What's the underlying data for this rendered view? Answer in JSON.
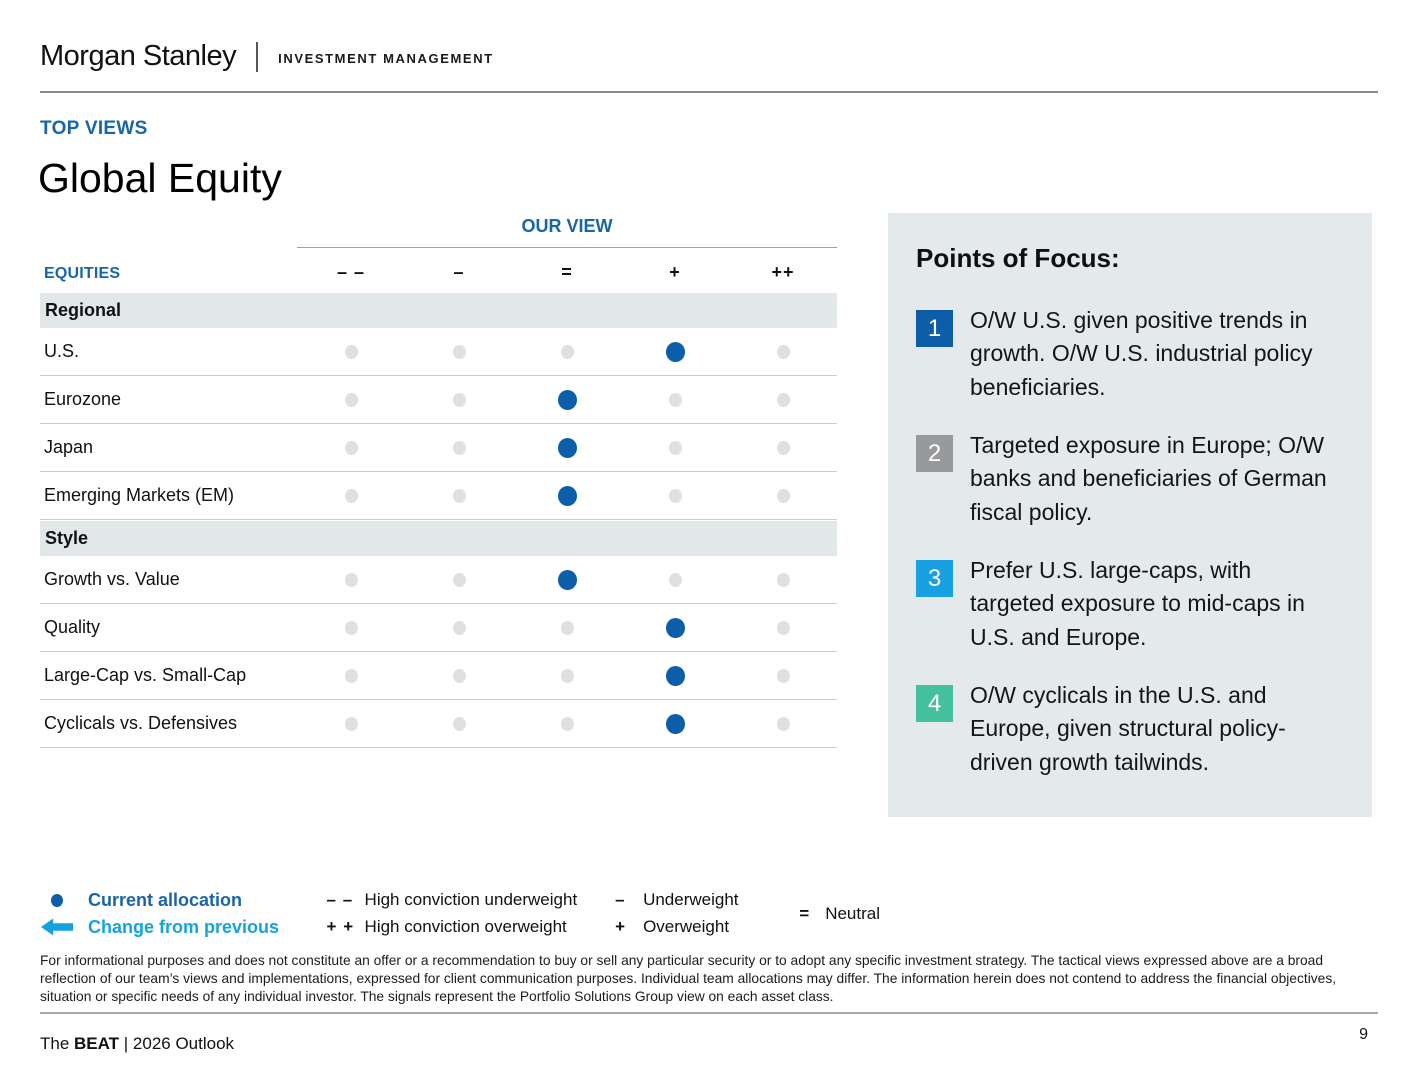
{
  "brand": {
    "logo_main": "Morgan Stanley",
    "logo_sub": "INVESTMENT MANAGEMENT"
  },
  "page": {
    "eyebrow": "TOP VIEWS",
    "title": "Global Equity",
    "page_number": "9",
    "footer_pre": "The ",
    "footer_bold": "BEAT",
    "footer_post": " | 2026 Outlook"
  },
  "table": {
    "group_header": "OUR VIEW",
    "row_header": "EQUITIES",
    "columns": [
      "– –",
      "–",
      "=",
      "+",
      "++"
    ],
    "sections": [
      {
        "title": "Regional",
        "rows": [
          {
            "label": "U.S.",
            "allocation": 3
          },
          {
            "label": "Eurozone",
            "allocation": 2
          },
          {
            "label": "Japan",
            "allocation": 2
          },
          {
            "label": "Emerging Markets (EM)",
            "allocation": 2
          }
        ]
      },
      {
        "title": "Style",
        "rows": [
          {
            "label": "Growth vs. Value",
            "allocation": 2
          },
          {
            "label": "Quality",
            "allocation": 3
          },
          {
            "label": "Large-Cap vs. Small-Cap",
            "allocation": 3
          },
          {
            "label": "Cyclicals vs. Defensives",
            "allocation": 3
          }
        ]
      }
    ]
  },
  "points_of_focus": {
    "title": "Points of Focus:",
    "items": [
      {
        "number": "1",
        "color": "#0d5ca7",
        "text": "O/W U.S. given positive trends in growth. O/W U.S. industrial policy beneficiaries."
      },
      {
        "number": "2",
        "color": "#98999b",
        "text": "Targeted exposure in Europe; O/W banks and beneficiaries of German fiscal policy."
      },
      {
        "number": "3",
        "color": "#18a0e2",
        "text": "Prefer U.S. large-caps, with targeted exposure to mid-caps in U.S. and Europe."
      },
      {
        "number": "4",
        "color": "#45c09d",
        "text": "O/W cyclicals in the U.S. and Europe, given structural policy-driven growth tailwinds."
      }
    ]
  },
  "legend": {
    "current_allocation": "Current allocation",
    "change_from_previous": "Change from previous",
    "items": [
      {
        "symbol": "– –",
        "label": "High conviction underweight"
      },
      {
        "symbol": "+ +",
        "label": "High conviction overweight"
      },
      {
        "symbol": "–",
        "label": "Underweight"
      },
      {
        "symbol": "+",
        "label": "Overweight"
      },
      {
        "symbol": "=",
        "label": "Neutral"
      }
    ]
  },
  "disclaimer": "For informational purposes and does not constitute an offer or a recommendation to buy or sell any particular security or to adopt any specific investment strategy. The tactical views expressed above are a broad reflection of our team’s views and implementations, expressed for client communication purposes. Individual team allocations may differ. The information herein does not contend to address the financial objectives, situation or specific needs of any individual investor. The signals represent the Portfolio Solutions Group view on each asset class.",
  "colors": {
    "accent_blue": "#1766a8",
    "dot_blue": "#0d5ea8",
    "dot_gray": "#dfe0e1",
    "band_bg": "#e2e7ea",
    "panel_bg": "#e4e9ec",
    "change_cyan": "#14a1dd"
  }
}
